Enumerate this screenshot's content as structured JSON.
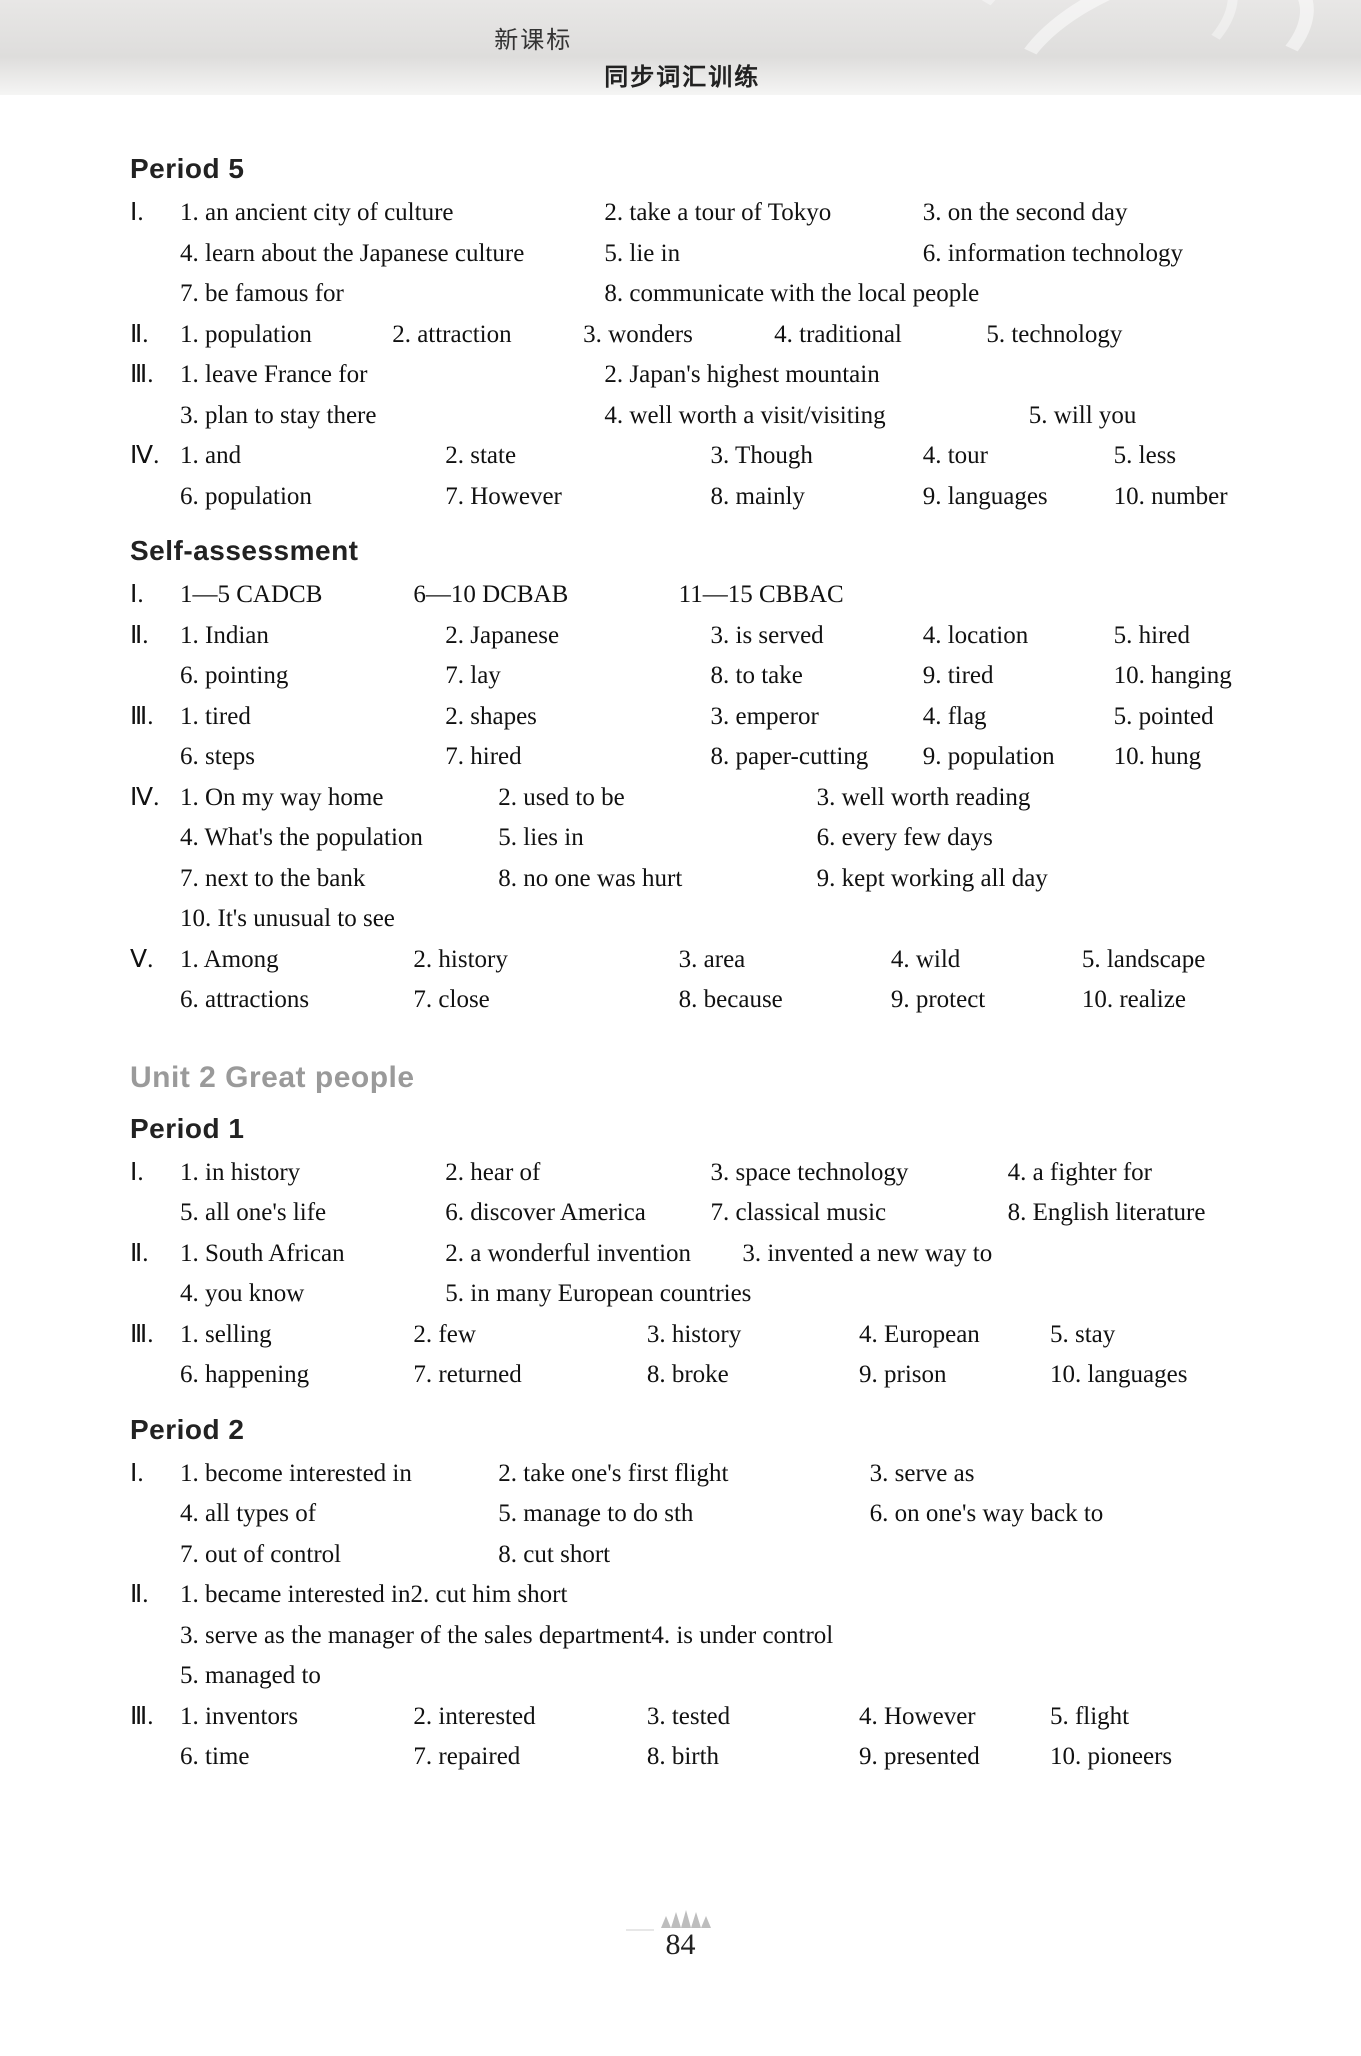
{
  "header": {
    "line1": "新课标",
    "line2": "同步词汇训练"
  },
  "page_number": "84",
  "sections": [
    {
      "heading": "Period 5",
      "groups": [
        {
          "roman": "Ⅰ.",
          "layout": "mixed",
          "rows": [
            [
              {
                "t": "1. an ancient city of culture",
                "w": "w-40"
              },
              {
                "t": "2. take a tour of Tokyo",
                "w": "w-30"
              },
              {
                "t": "3. on the second day",
                "w": "w-30"
              }
            ],
            [
              {
                "t": "4. learn about the Japanese culture",
                "w": "w-40"
              },
              {
                "t": "5. lie in",
                "w": "w-30"
              },
              {
                "t": "6. information technology",
                "w": "w-30"
              }
            ],
            [
              {
                "t": "7. be famous for",
                "w": "w-40"
              },
              {
                "t": "8. communicate with the local people",
                "w": "w-40"
              }
            ]
          ]
        },
        {
          "roman": "Ⅱ.",
          "layout": "mixed",
          "rows": [
            [
              {
                "t": "1. population",
                "w": "w-20"
              },
              {
                "t": "2. attraction",
                "w": "w-18"
              },
              {
                "t": "3. wonders",
                "w": "w-18"
              },
              {
                "t": "4. traditional",
                "w": "w-20"
              },
              {
                "t": "5. technology",
                "w": "w-22"
              }
            ]
          ]
        },
        {
          "roman": "Ⅲ.",
          "layout": "mixed",
          "rows": [
            [
              {
                "t": "1. leave France for",
                "w": "w-40"
              },
              {
                "t": "2. Japan's highest mountain",
                "w": "w-40"
              }
            ],
            [
              {
                "t": "3. plan to stay there",
                "w": "w-40"
              },
              {
                "t": "4. well worth a visit/visiting",
                "w": "w-40"
              },
              {
                "t": "5. will you",
                "w": "w-20"
              }
            ]
          ]
        },
        {
          "roman": "Ⅳ.",
          "layout": "mixed",
          "rows": [
            [
              {
                "t": "1. and",
                "w": "w-25"
              },
              {
                "t": "2. state",
                "w": "w-25"
              },
              {
                "t": "3. Though",
                "w": "w-20"
              },
              {
                "t": "4. tour",
                "w": "w-18"
              },
              {
                "t": "5. less",
                "w": "w-12"
              }
            ],
            [
              {
                "t": "6. population",
                "w": "w-25"
              },
              {
                "t": "7. However",
                "w": "w-25"
              },
              {
                "t": "8. mainly",
                "w": "w-20"
              },
              {
                "t": "9. languages",
                "w": "w-18"
              },
              {
                "t": "10. number",
                "w": "w-12"
              }
            ]
          ]
        }
      ]
    },
    {
      "heading": "Self-assessment",
      "groups": [
        {
          "roman": "Ⅰ.",
          "layout": "mixed",
          "rows": [
            [
              {
                "t": "1—5 CADCB",
                "w": "w-22"
              },
              {
                "t": "6—10 DCBAB",
                "w": "w-25"
              },
              {
                "t": "11—15 CBBAC",
                "w": "w-30"
              }
            ]
          ]
        },
        {
          "roman": "Ⅱ.",
          "layout": "mixed",
          "rows": [
            [
              {
                "t": "1. Indian",
                "w": "w-25"
              },
              {
                "t": "2. Japanese",
                "w": "w-25"
              },
              {
                "t": "3. is served",
                "w": "w-20"
              },
              {
                "t": "4. location",
                "w": "w-18"
              },
              {
                "t": "5. hired",
                "w": "w-12"
              }
            ],
            [
              {
                "t": "6. pointing",
                "w": "w-25"
              },
              {
                "t": "7. lay",
                "w": "w-25"
              },
              {
                "t": "8. to take",
                "w": "w-20"
              },
              {
                "t": "9. tired",
                "w": "w-18"
              },
              {
                "t": "10. hanging",
                "w": "w-12"
              }
            ]
          ]
        },
        {
          "roman": "Ⅲ.",
          "layout": "mixed",
          "rows": [
            [
              {
                "t": "1. tired",
                "w": "w-25"
              },
              {
                "t": "2. shapes",
                "w": "w-25"
              },
              {
                "t": "3. emperor",
                "w": "w-20"
              },
              {
                "t": "4. flag",
                "w": "w-18"
              },
              {
                "t": "5. pointed",
                "w": "w-12"
              }
            ],
            [
              {
                "t": "6. steps",
                "w": "w-25"
              },
              {
                "t": "7. hired",
                "w": "w-25"
              },
              {
                "t": "8. paper-cutting",
                "w": "w-20"
              },
              {
                "t": "9. population",
                "w": "w-18"
              },
              {
                "t": "10. hung",
                "w": "w-12"
              }
            ]
          ]
        },
        {
          "roman": "Ⅳ.",
          "layout": "mixed",
          "rows": [
            [
              {
                "t": "1. On my way home",
                "w": "w-30"
              },
              {
                "t": "2. used to be",
                "w": "w-30"
              },
              {
                "t": "3. well worth reading",
                "w": "w-30"
              }
            ],
            [
              {
                "t": "4. What's the population",
                "w": "w-30"
              },
              {
                "t": "5. lies in",
                "w": "w-30"
              },
              {
                "t": "6. every few days",
                "w": "w-30"
              }
            ],
            [
              {
                "t": "7. next to the bank",
                "w": "w-30"
              },
              {
                "t": "8. no one was hurt",
                "w": "w-30"
              },
              {
                "t": "9. kept working all day",
                "w": "w-30"
              }
            ],
            [
              {
                "t": "10. It's unusual to see",
                "w": "w-full"
              }
            ]
          ]
        },
        {
          "roman": "Ⅴ.",
          "layout": "mixed",
          "rows": [
            [
              {
                "t": "1. Among",
                "w": "w-22"
              },
              {
                "t": "2. history",
                "w": "w-25"
              },
              {
                "t": "3. area",
                "w": "w-20"
              },
              {
                "t": "4. wild",
                "w": "w-18"
              },
              {
                "t": "5. landscape",
                "w": "w-15"
              }
            ],
            [
              {
                "t": "6. attractions",
                "w": "w-22"
              },
              {
                "t": "7. close",
                "w": "w-25"
              },
              {
                "t": "8. because",
                "w": "w-20"
              },
              {
                "t": "9. protect",
                "w": "w-18"
              },
              {
                "t": "10. realize",
                "w": "w-15"
              }
            ]
          ]
        }
      ]
    },
    {
      "unit_heading": "Unit 2 Great people",
      "heading": "Period 1",
      "groups": [
        {
          "roman": "Ⅰ.",
          "layout": "mixed",
          "rows": [
            [
              {
                "t": "1. in history",
                "w": "w-25"
              },
              {
                "t": "2. hear of",
                "w": "w-25"
              },
              {
                "t": "3. space technology",
                "w": "w-28"
              },
              {
                "t": "4. a fighter for",
                "w": "w-22"
              }
            ],
            [
              {
                "t": "5. all one's life",
                "w": "w-25"
              },
              {
                "t": "6. discover America",
                "w": "w-25"
              },
              {
                "t": "7. classical music",
                "w": "w-28"
              },
              {
                "t": "8. English literature",
                "w": "w-22"
              }
            ]
          ]
        },
        {
          "roman": "Ⅱ.",
          "layout": "mixed",
          "rows": [
            [
              {
                "t": "1. South African",
                "w": "w-25"
              },
              {
                "t": "2. a wonderful invention",
                "w": "w-28"
              },
              {
                "t": "3. invented a new way to",
                "w": "w-40"
              }
            ],
            [
              {
                "t": "4. you know",
                "w": "w-25"
              },
              {
                "t": "5. in many European countries",
                "w": "w-60"
              }
            ]
          ]
        },
        {
          "roman": "Ⅲ.",
          "layout": "mixed",
          "rows": [
            [
              {
                "t": "1. selling",
                "w": "w-22"
              },
              {
                "t": "2. few",
                "w": "w-22"
              },
              {
                "t": "3. history",
                "w": "w-20"
              },
              {
                "t": "4. European",
                "w": "w-18"
              },
              {
                "t": "5. stay",
                "w": "w-18"
              }
            ],
            [
              {
                "t": "6. happening",
                "w": "w-22"
              },
              {
                "t": "7. returned",
                "w": "w-22"
              },
              {
                "t": "8. broke",
                "w": "w-20"
              },
              {
                "t": "9. prison",
                "w": "w-18"
              },
              {
                "t": "10. languages",
                "w": "w-18"
              }
            ]
          ]
        }
      ]
    },
    {
      "heading": "Period 2",
      "groups": [
        {
          "roman": "Ⅰ.",
          "layout": "mixed",
          "rows": [
            [
              {
                "t": "1. become interested in",
                "w": "w-30"
              },
              {
                "t": "2. take one's first flight",
                "w": "w-35"
              },
              {
                "t": "3. serve as",
                "w": "w-30"
              }
            ],
            [
              {
                "t": "4. all types of",
                "w": "w-30"
              },
              {
                "t": "5. manage to do sth",
                "w": "w-35"
              },
              {
                "t": "6. on one's way back to",
                "w": "w-30"
              }
            ],
            [
              {
                "t": "7. out of control",
                "w": "w-30"
              },
              {
                "t": "8. cut short",
                "w": "w-35"
              }
            ]
          ]
        },
        {
          "roman": "Ⅱ.",
          "layout": "mixed",
          "rows": [
            [
              {
                "t": "1. became interested in",
                "w": "w-55"
              },
              {
                "t": "2. cut him short",
                "w": "w-40"
              }
            ],
            [
              {
                "t": "3. serve as the manager of the sales department",
                "w": "w-55"
              },
              {
                "t": "4. is under control",
                "w": "w-40"
              }
            ],
            [
              {
                "t": "5. managed to",
                "w": "w-full"
              }
            ]
          ]
        },
        {
          "roman": "Ⅲ.",
          "layout": "mixed",
          "rows": [
            [
              {
                "t": "1. inventors",
                "w": "w-22"
              },
              {
                "t": "2. interested",
                "w": "w-22"
              },
              {
                "t": "3. tested",
                "w": "w-20"
              },
              {
                "t": "4. However",
                "w": "w-18"
              },
              {
                "t": "5. flight",
                "w": "w-18"
              }
            ],
            [
              {
                "t": "6. time",
                "w": "w-22"
              },
              {
                "t": "7. repaired",
                "w": "w-22"
              },
              {
                "t": "8. birth",
                "w": "w-20"
              },
              {
                "t": "9. presented",
                "w": "w-18"
              },
              {
                "t": "10. pioneers",
                "w": "w-18"
              }
            ]
          ]
        }
      ]
    }
  ]
}
